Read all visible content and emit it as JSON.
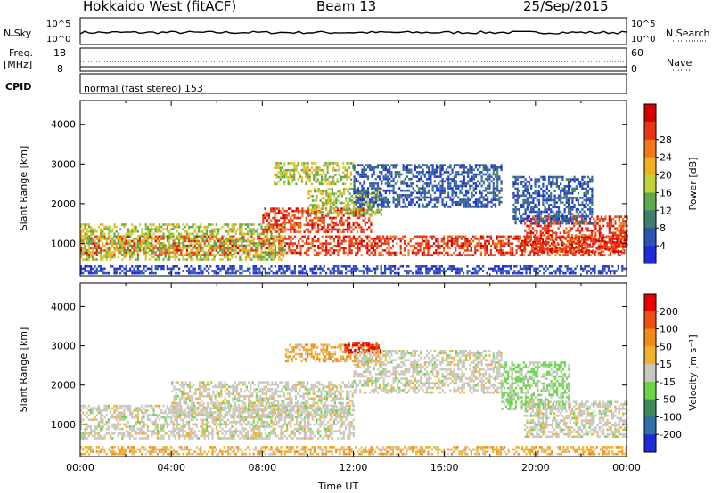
{
  "header": {
    "left": "Hokkaido West (fitACF)",
    "center": "Beam 13",
    "right": "25/Sep/2015"
  },
  "top_panels": {
    "nsky_label": "N.Sky",
    "nsearch_label": "N.Search",
    "nsky_ticks": [
      "10^5",
      "10^0"
    ],
    "nsearch_ticks": [
      "10^5",
      "10^0"
    ],
    "freq_label_1": "Freq.",
    "freq_label_2": "[MHz]",
    "freq_ticks": [
      "18",
      "8"
    ],
    "nave_label": "Nave",
    "nave_ticks": [
      "60",
      "0"
    ],
    "cpid_label": "CPID",
    "cpid_text": "normal (fast stereo) 153"
  },
  "chart_data": [
    {
      "type": "heatmap",
      "name": "power",
      "ylabel": "Slant Range [km]",
      "xlabel": "",
      "ylim": [
        180,
        4600
      ],
      "xlim": [
        0,
        24
      ],
      "yticks": [
        1000,
        2000,
        3000,
        4000
      ],
      "colorbar": {
        "label": "Power [dB]",
        "ticks": [
          "4",
          "8",
          "12",
          "16",
          "20",
          "24",
          "28"
        ],
        "colors": [
          "#1f2bd6",
          "#2d54b0",
          "#3f7d6f",
          "#5fa84b",
          "#c2d23a",
          "#f0b020",
          "#f07a18",
          "#e83515",
          "#d40000"
        ]
      },
      "bands": [
        {
          "start": 0.0,
          "end": 24.0,
          "r0": 720,
          "r1": 1200,
          "level": "strong"
        },
        {
          "start": 0.0,
          "end": 9.0,
          "r0": 600,
          "r1": 1500,
          "level": "mid"
        },
        {
          "start": 8.0,
          "end": 12.8,
          "r0": 1300,
          "r1": 1900,
          "level": "strong"
        },
        {
          "start": 10.0,
          "end": 13.2,
          "r0": 1700,
          "r1": 2400,
          "level": "mid"
        },
        {
          "start": 8.5,
          "end": 12.0,
          "r0": 2500,
          "r1": 3050,
          "level": "mid"
        },
        {
          "start": 12.0,
          "end": 18.5,
          "r0": 1900,
          "r1": 3000,
          "level": "weak"
        },
        {
          "start": 19.5,
          "end": 24.0,
          "r0": 800,
          "r1": 1700,
          "level": "strong"
        },
        {
          "start": 19.0,
          "end": 22.5,
          "r0": 1500,
          "r1": 2700,
          "level": "weak"
        },
        {
          "start": 0.0,
          "end": 24.0,
          "r0": 250,
          "r1": 450,
          "level": "low"
        }
      ]
    },
    {
      "type": "heatmap",
      "name": "velocity",
      "ylabel": "Slant Range [km]",
      "xlabel": "Time UT",
      "ylim": [
        180,
        4600
      ],
      "xlim": [
        0,
        24
      ],
      "yticks": [
        1000,
        2000,
        3000,
        4000
      ],
      "xticks": [
        "00:00",
        "04:00",
        "08:00",
        "12:00",
        "16:00",
        "20:00",
        "00:00"
      ],
      "colorbar": {
        "label": "Velocity [m s⁻¹]",
        "ticks": [
          "200",
          "100",
          "50",
          "15",
          "-15",
          "-50",
          "-100",
          "-200"
        ],
        "colors": [
          "#1f2bd6",
          "#2f6fa8",
          "#3b8a5a",
          "#6cd44a",
          "#c8c8c0",
          "#f0b030",
          "#f08a18",
          "#f05010",
          "#e80000"
        ]
      },
      "bands": [
        {
          "start": 0.0,
          "end": 12.0,
          "r0": 650,
          "r1": 1500,
          "level": "ground"
        },
        {
          "start": 4.0,
          "end": 12.0,
          "r0": 1200,
          "r1": 2100,
          "level": "ground"
        },
        {
          "start": 9.0,
          "end": 13.2,
          "r0": 2600,
          "r1": 3050,
          "level": "away"
        },
        {
          "start": 11.6,
          "end": 13.2,
          "r0": 2850,
          "r1": 3100,
          "level": "fast"
        },
        {
          "start": 12.0,
          "end": 18.5,
          "r0": 1800,
          "r1": 2900,
          "level": "ground"
        },
        {
          "start": 18.5,
          "end": 21.5,
          "r0": 1400,
          "r1": 2600,
          "level": "toward"
        },
        {
          "start": 19.5,
          "end": 24.0,
          "r0": 700,
          "r1": 1600,
          "level": "ground"
        },
        {
          "start": 0.0,
          "end": 24.0,
          "r0": 250,
          "r1": 450,
          "level": "away"
        }
      ]
    }
  ]
}
